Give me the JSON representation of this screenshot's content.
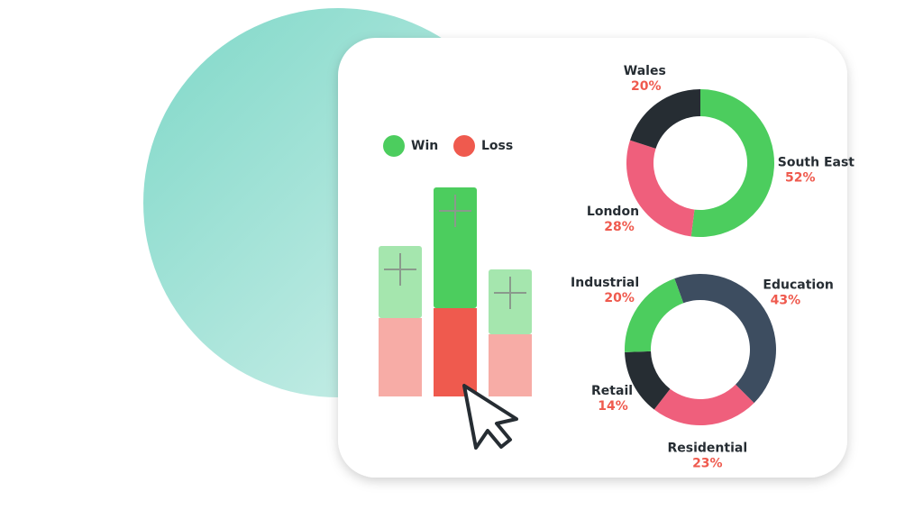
{
  "chart_data": [
    {
      "type": "bar",
      "stacked": true,
      "categories": [
        null,
        null,
        null
      ],
      "highlight": 1,
      "series": [
        {
          "name": "Loss",
          "color": "#ef5a4e",
          "values": [
            87,
            98,
            69
          ]
        },
        {
          "name": "Win",
          "color": "#4ccd5e",
          "values": [
            80,
            134,
            72
          ]
        }
      ]
    },
    {
      "type": "donut",
      "start_angle": 0,
      "categories": [
        "South East",
        "London",
        "Wales"
      ],
      "values": [
        52,
        28,
        20
      ],
      "value_labels": [
        "52%",
        "28%",
        "20%"
      ],
      "colors": [
        "#4ccd5e",
        "#ef5f7c",
        "#262d33"
      ]
    },
    {
      "type": "donut",
      "start_angle": -20,
      "categories": [
        "Education",
        "Residential",
        "Retail",
        "Industrial"
      ],
      "values": [
        43,
        23,
        14,
        20
      ],
      "value_labels": [
        "43%",
        "23%",
        "14%",
        "20%"
      ],
      "colors": [
        "#3d4d60",
        "#ef5f7c",
        "#262d33",
        "#4ccd5e"
      ]
    }
  ]
}
